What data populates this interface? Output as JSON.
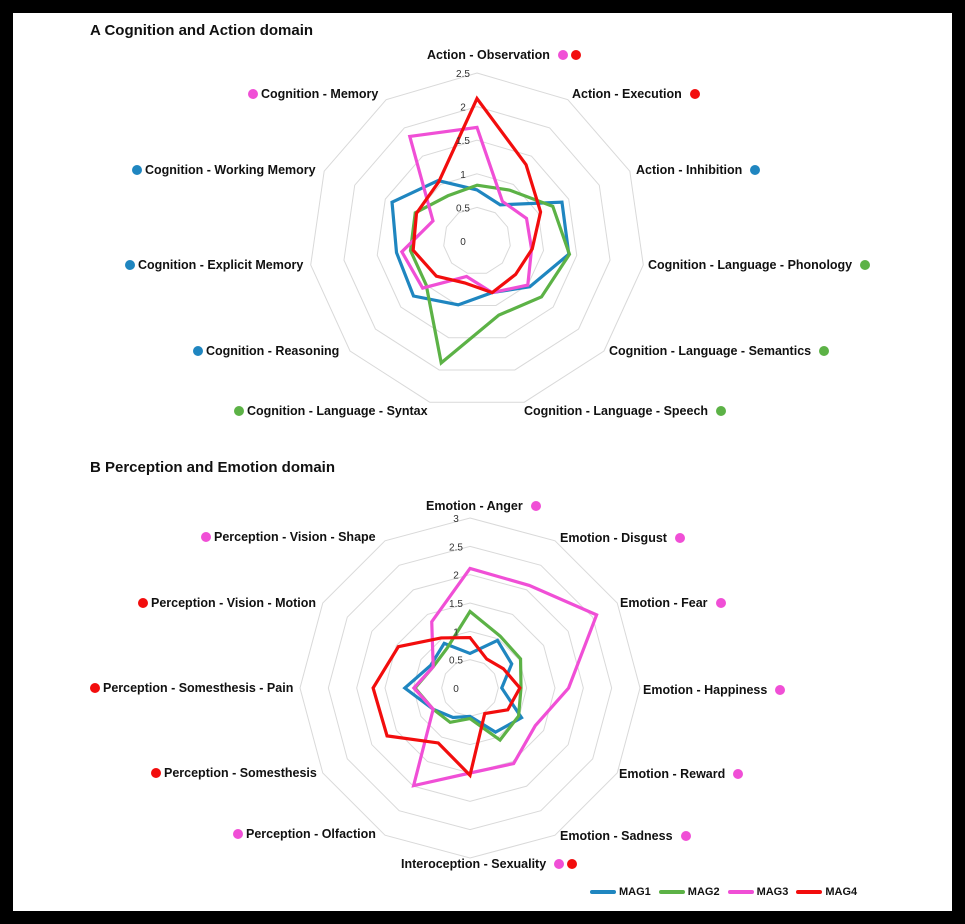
{
  "colors": {
    "MAG1": "#1f86c0",
    "MAG2": "#5cb246",
    "MAG3": "#f04fd6",
    "MAG4": "#f20d0d",
    "grid": "#d9d9d9"
  },
  "legend": [
    {
      "name": "MAG1",
      "color": "#1f86c0"
    },
    {
      "name": "MAG2",
      "color": "#5cb246"
    },
    {
      "name": "MAG3",
      "color": "#f04fd6"
    },
    {
      "name": "MAG4",
      "color": "#f20d0d"
    }
  ],
  "chart_data": [
    {
      "type": "radar",
      "title": "A Cognition and Action domain",
      "rlim": [
        0,
        2.5
      ],
      "ticks": [
        "0",
        "0.5",
        "1",
        "1.5",
        "2",
        "2.5"
      ],
      "grid": true,
      "legend_position": "bottom-right",
      "categories": [
        {
          "label": "Action - Observation",
          "dots": [
            "#f04fd6",
            "#f20d0d"
          ]
        },
        {
          "label": "Action - Execution",
          "dots": [
            "#f20d0d"
          ]
        },
        {
          "label": "Action - Inhibition",
          "dots": [
            "#1f86c0"
          ]
        },
        {
          "label": "Cognition - Language - Phonology",
          "dots": [
            "#5cb246"
          ]
        },
        {
          "label": "Cognition - Language - Semantics",
          "dots": [
            "#5cb246"
          ]
        },
        {
          "label": "Cognition - Language - Speech",
          "dots": [
            "#5cb246"
          ]
        },
        {
          "label": "Cognition - Language - Syntax",
          "dots": [
            "#5cb246"
          ]
        },
        {
          "label": "Cognition - Reasoning",
          "dots": [
            "#1f86c0"
          ]
        },
        {
          "label": "Cognition - Explicit Memory",
          "dots": [
            "#1f86c0"
          ]
        },
        {
          "label": "Cognition - Working Memory",
          "dots": [
            "#1f86c0"
          ]
        },
        {
          "label": "Cognition - Memory",
          "dots": [
            "#f04fd6"
          ]
        }
      ],
      "series": [
        {
          "name": "MAG1",
          "color": "#1f86c0",
          "values": [
            0.76,
            0.64,
            1.39,
            1.38,
            1.04,
            0.8,
            0.99,
            1.25,
            1.21,
            1.39,
            1.07
          ]
        },
        {
          "name": "MAG2",
          "color": "#5cb246",
          "values": [
            0.83,
            0.9,
            1.24,
            1.39,
            1.27,
            1.15,
            1.89,
            1.0,
            1.0,
            1.01,
            0.8
          ]
        },
        {
          "name": "MAG3",
          "color": "#f04fd6",
          "values": [
            1.69,
            0.7,
            0.81,
            0.82,
            1.0,
            0.8,
            0.55,
            1.07,
            1.13,
            0.72,
            1.85
          ]
        },
        {
          "name": "MAG4",
          "color": "#f20d0d",
          "values": [
            2.12,
            1.35,
            1.04,
            0.83,
            0.76,
            0.8,
            0.65,
            0.8,
            0.96,
            0.99,
            1.05
          ]
        }
      ]
    },
    {
      "type": "radar",
      "title": "B Perception and Emotion domain",
      "rlim": [
        0,
        3
      ],
      "ticks": [
        "0",
        "0.5",
        "1",
        "1.5",
        "2",
        "2.5",
        "3"
      ],
      "grid": true,
      "legend_position": "bottom-right",
      "categories": [
        {
          "label": "Emotion - Anger",
          "dots": [
            "#f04fd6"
          ]
        },
        {
          "label": "Emotion - Disgust",
          "dots": [
            "#f04fd6"
          ]
        },
        {
          "label": "Emotion - Fear",
          "dots": [
            "#f04fd6"
          ]
        },
        {
          "label": "Emotion - Happiness",
          "dots": [
            "#f04fd6"
          ]
        },
        {
          "label": "Emotion - Reward",
          "dots": [
            "#f04fd6"
          ]
        },
        {
          "label": "Emotion - Sadness",
          "dots": [
            "#f04fd6"
          ]
        },
        {
          "label": "Interoception - Sexuality",
          "dots": [
            "#f04fd6",
            "#f20d0d"
          ]
        },
        {
          "label": "Perception - Olfaction",
          "dots": [
            "#f04fd6"
          ]
        },
        {
          "label": "Perception - Somesthesis",
          "dots": [
            "#f20d0d"
          ]
        },
        {
          "label": "Perception - Somesthesis - Pain",
          "dots": [
            "#f20d0d"
          ]
        },
        {
          "label": "Perception - Vision - Motion",
          "dots": [
            "#f20d0d"
          ]
        },
        {
          "label": "Perception - Vision - Shape",
          "dots": [
            "#f04fd6"
          ]
        }
      ],
      "series": [
        {
          "name": "MAG1",
          "color": "#1f86c0",
          "values": [
            0.61,
            0.97,
            0.85,
            0.56,
            1.05,
            0.9,
            0.5,
            0.6,
            0.75,
            1.15,
            0.8,
            0.91
          ]
        },
        {
          "name": "MAG2",
          "color": "#5cb246",
          "values": [
            1.35,
            1.06,
            1.03,
            0.9,
            0.99,
            1.06,
            0.54,
            0.7,
            0.75,
            0.97,
            0.75,
            0.81
          ]
        },
        {
          "name": "MAG3",
          "color": "#f04fd6",
          "values": [
            2.11,
            2.09,
            2.58,
            1.74,
            1.33,
            1.54,
            1.5,
            1.99,
            0.75,
            0.99,
            0.75,
            1.35
          ]
        },
        {
          "name": "MAG4",
          "color": "#f20d0d",
          "values": [
            0.89,
            0.59,
            0.68,
            0.88,
            0.77,
            0.52,
            1.54,
            1.12,
            1.69,
            1.71,
            1.46,
            1.02
          ]
        }
      ]
    }
  ]
}
